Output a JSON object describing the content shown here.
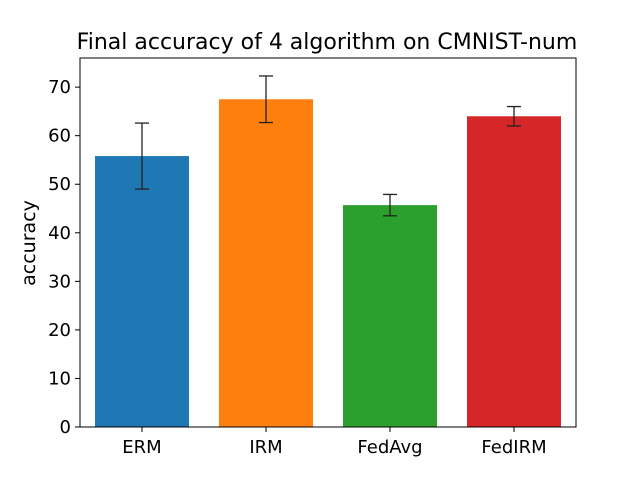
{
  "chart_data": {
    "type": "bar",
    "title": "Final accuracy of 4 algorithm on CMNIST-num",
    "xlabel": "",
    "ylabel": "accuracy",
    "categories": [
      "ERM",
      "IRM",
      "FedAvg",
      "FedIRM"
    ],
    "values": [
      55.8,
      67.5,
      45.7,
      64.0
    ],
    "error_low": [
      49.0,
      62.7,
      43.5,
      62.0
    ],
    "error_high": [
      62.6,
      72.3,
      47.9,
      66.0
    ],
    "colors": [
      "#1f77b4",
      "#ff7f0e",
      "#2ca02c",
      "#d62728"
    ],
    "ylim": [
      0,
      76
    ],
    "yticks": [
      0,
      10,
      20,
      30,
      40,
      50,
      60,
      70
    ],
    "grid": false,
    "legend": "none"
  }
}
